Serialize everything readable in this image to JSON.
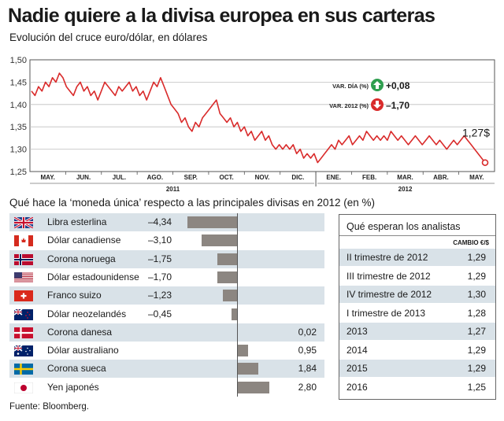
{
  "title": "Nadie quiere a la divisa europea en sus carteras",
  "subtitle": "Evolución del cruce euro/dólar, en dólares",
  "chart_data": [
    {
      "type": "line",
      "y_ticks": [
        "1,50",
        "1,45",
        "1,40",
        "1,35",
        "1,30",
        "1,25"
      ],
      "ylim": [
        1.25,
        1.5
      ],
      "x_month_labels": [
        "MAY.",
        "JUN.",
        "JUL.",
        "AGO.",
        "SEP.",
        "OCT.",
        "NOV.",
        "DIC.",
        "ENE.",
        "FEB.",
        "MAR.",
        "ABR.",
        "MAY."
      ],
      "year_labels": [
        "2011",
        "2012"
      ],
      "series": [
        {
          "values": [
            1.43,
            1.42,
            1.44,
            1.43,
            1.45,
            1.44,
            1.46,
            1.45,
            1.47,
            1.46,
            1.44,
            1.43,
            1.42,
            1.44,
            1.45,
            1.43,
            1.44,
            1.42,
            1.43,
            1.41,
            1.43,
            1.45,
            1.44,
            1.43,
            1.42,
            1.44,
            1.43,
            1.44,
            1.45,
            1.43,
            1.44,
            1.42,
            1.43,
            1.41,
            1.43,
            1.45,
            1.44,
            1.46,
            1.44,
            1.42,
            1.4,
            1.39,
            1.38,
            1.36,
            1.37,
            1.35,
            1.34,
            1.36,
            1.35,
            1.37,
            1.38,
            1.39,
            1.4,
            1.41,
            1.38,
            1.37,
            1.36,
            1.37,
            1.35,
            1.36,
            1.34,
            1.35,
            1.33,
            1.34,
            1.32,
            1.33,
            1.34,
            1.32,
            1.33,
            1.31,
            1.3,
            1.31,
            1.3,
            1.31,
            1.3,
            1.31,
            1.29,
            1.3,
            1.28,
            1.29,
            1.28,
            1.29,
            1.27,
            1.28,
            1.29,
            1.3,
            1.31,
            1.3,
            1.32,
            1.31,
            1.32,
            1.33,
            1.31,
            1.32,
            1.33,
            1.32,
            1.34,
            1.33,
            1.32,
            1.33,
            1.32,
            1.33,
            1.32,
            1.34,
            1.33,
            1.32,
            1.33,
            1.32,
            1.31,
            1.32,
            1.33,
            1.32,
            1.31,
            1.32,
            1.33,
            1.32,
            1.31,
            1.32,
            1.31,
            1.3,
            1.31,
            1.32,
            1.31,
            1.32,
            1.33,
            1.32,
            1.31,
            1.3,
            1.29,
            1.28,
            1.27
          ]
        }
      ],
      "last_value_label": "1,27$",
      "indicators": [
        {
          "label": "VAR. DÍA (%)",
          "value": "+0,08",
          "direction": "up",
          "color": "#2e9e4f"
        },
        {
          "label": "VAR. 2012 (%)",
          "value": "–1,70",
          "direction": "down",
          "color": "#d92b2b"
        }
      ],
      "line_color": "#d92b2b"
    },
    {
      "type": "bar",
      "title": "Qué hace la ‘moneda única’ respecto a las principales divisas en 2012 (en %)",
      "categories": [
        "Libra esterlina",
        "Dólar canadiense",
        "Corona noruega",
        "Dólar estadounidense",
        "Franco suizo",
        "Dólar neozelandés",
        "Corona danesa",
        "Dólar australiano",
        "Corona sueca",
        "Yen japonés"
      ],
      "values": [
        -4.34,
        -3.1,
        -1.75,
        -1.7,
        -1.23,
        -0.45,
        0.02,
        0.95,
        1.84,
        2.8
      ],
      "value_labels": [
        "–4,34",
        "–3,10",
        "–1,75",
        "–1,70",
        "–1,23",
        "–0,45",
        "0,02",
        "0,95",
        "1,84",
        "2,80"
      ],
      "flags": [
        "uk-flag-icon",
        "canada-flag-icon",
        "norway-flag-icon",
        "usa-flag-icon",
        "switzerland-flag-icon",
        "new-zealand-flag-icon",
        "denmark-flag-icon",
        "australia-flag-icon",
        "sweden-flag-icon",
        "japan-flag-icon"
      ],
      "bar_color": "#8c8681",
      "row_shade": "#d9e2e8"
    }
  ],
  "analysts": {
    "title": "Qué esperan los analistas",
    "column_header": "CAMBIO €/$",
    "rows": [
      {
        "label": "II trimestre de 2012",
        "value": "1,29"
      },
      {
        "label": "III trimestre de 2012",
        "value": "1,29"
      },
      {
        "label": "IV trimestre de 2012",
        "value": "1,30"
      },
      {
        "label": "I trimestre de 2013",
        "value": "1,28"
      },
      {
        "label": "2013",
        "value": "1,27"
      },
      {
        "label": "2014",
        "value": "1,29"
      },
      {
        "label": "2015",
        "value": "1,29"
      },
      {
        "label": "2016",
        "value": "1,25"
      }
    ]
  },
  "source": "Fuente: Bloomberg."
}
